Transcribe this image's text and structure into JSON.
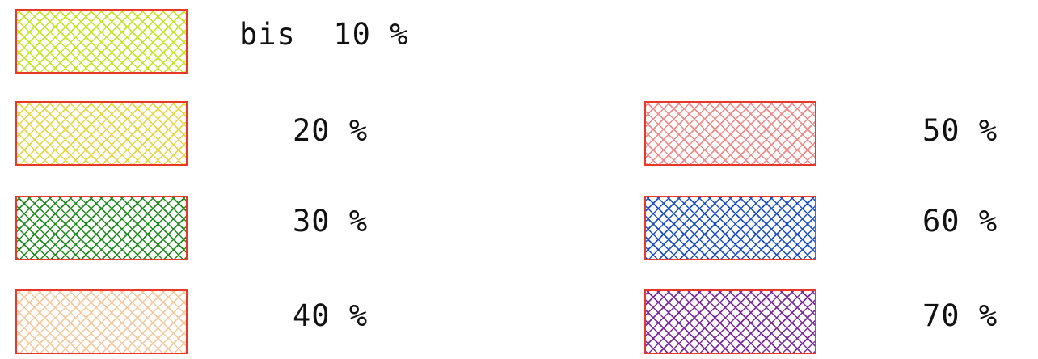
{
  "legend": {
    "border_color": "#e8382a",
    "items": [
      {
        "label": "bis  10 %",
        "hatch_color": "#c4e62a"
      },
      {
        "label": "20 %",
        "hatch_color": "#e3d84a"
      },
      {
        "label": "30 %",
        "hatch_color": "#1f8a1f"
      },
      {
        "label": "40 %",
        "hatch_color": "#f3c9a0"
      },
      {
        "label": "50 %",
        "hatch_color": "#ee8a8a"
      },
      {
        "label": "60 %",
        "hatch_color": "#1c4fc4"
      },
      {
        "label": "70 %",
        "hatch_color": "#7a2a9a"
      }
    ]
  }
}
